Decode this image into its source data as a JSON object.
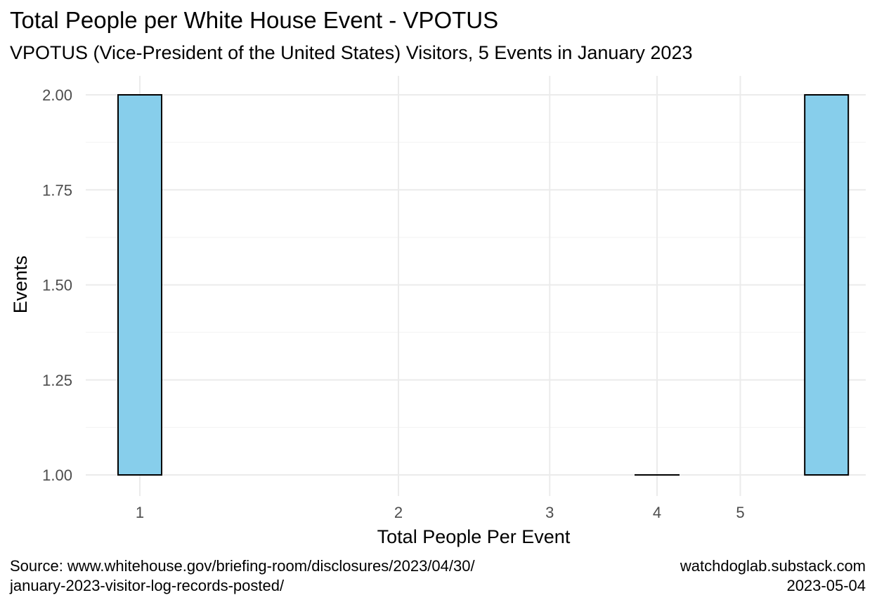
{
  "chart_data": {
    "type": "bar",
    "title": "Total People per White House Event - VPOTUS",
    "subtitle": "VPOTUS (Vice-President of the United States) Visitors, 5 Events in January 2023",
    "xlabel": "Total People Per Event",
    "ylabel": "Events",
    "x_scale": "log",
    "x_ticks": [
      1,
      2,
      3,
      4,
      5
    ],
    "y_ticks": [
      1.0,
      1.25,
      1.5,
      1.75,
      2.0
    ],
    "y_tick_labels": [
      "1.00",
      "1.25",
      "1.50",
      "1.75",
      "2.00"
    ],
    "ylim": [
      1.0,
      2.0
    ],
    "bars": [
      {
        "x": 1,
        "events": 2
      },
      {
        "x": 4,
        "events": 1
      },
      {
        "x": 6.3,
        "events": 2
      }
    ],
    "bar_fill": "#87CEEB",
    "bar_stroke": "#000000",
    "grid": true,
    "legend": "none"
  },
  "caption": {
    "source_line1": "Source: www.whitehouse.gov/briefing-room/disclosures/2023/04/30/",
    "source_line2": "january-2023-visitor-log-records-posted/",
    "site": "watchdoglab.substack.com",
    "date": "2023-05-04"
  }
}
